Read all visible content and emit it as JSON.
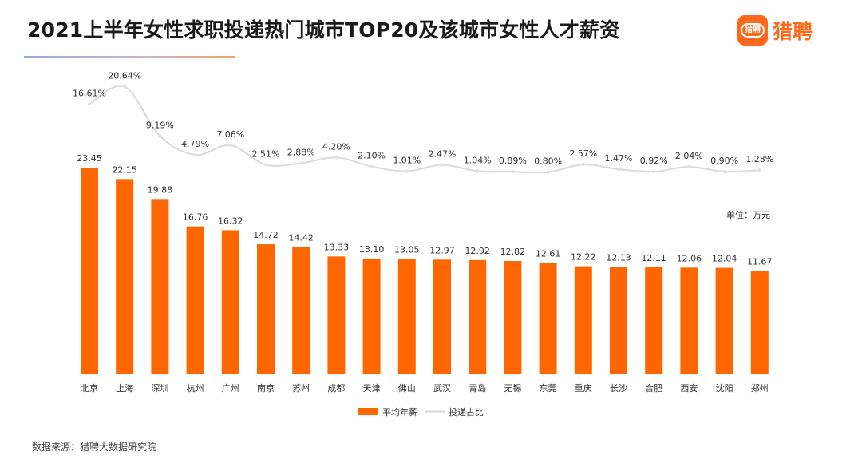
{
  "title": "2021上半年女性求职投递热门城市TOP20及该城市女性人才薪资",
  "logo": {
    "badge_text": "猎聘",
    "brand_name": "猎聘",
    "icon": "speech-bubble-icon",
    "color": "#ff6a1a"
  },
  "source": "数据来源：猎聘大数据研究院",
  "chart_data": {
    "type": "bar",
    "title": "2021上半年女性求职投递热门城市TOP20及该城市女性人才薪资",
    "categories": [
      "北京",
      "上海",
      "深圳",
      "杭州",
      "广州",
      "南京",
      "苏州",
      "成都",
      "天津",
      "佛山",
      "武汉",
      "青岛",
      "无锡",
      "东莞",
      "重庆",
      "长沙",
      "合肥",
      "西安",
      "沈阳",
      "郑州"
    ],
    "series": [
      {
        "name": "平均年薪",
        "type": "bar",
        "color": "#ff6600",
        "values": [
          23.45,
          22.15,
          19.88,
          16.76,
          16.32,
          14.72,
          14.42,
          13.33,
          13.1,
          13.05,
          12.97,
          12.92,
          12.82,
          12.61,
          12.22,
          12.13,
          12.11,
          12.06,
          12.04,
          11.67
        ],
        "labels": [
          "23.45",
          "22.15",
          "19.88",
          "16.76",
          "16.32",
          "14.72",
          "14.42",
          "13.33",
          "13.10",
          "13.05",
          "12.97",
          "12.92",
          "12.82",
          "12.61",
          "12.22",
          "12.13",
          "12.11",
          "12.06",
          "12.04",
          "11.67"
        ]
      },
      {
        "name": "投递占比",
        "type": "line",
        "color": "#dddddd",
        "values": [
          16.61,
          20.64,
          9.19,
          4.79,
          7.06,
          2.51,
          2.88,
          4.2,
          2.1,
          1.01,
          2.47,
          1.04,
          0.89,
          0.8,
          2.57,
          1.47,
          0.92,
          2.04,
          0.9,
          1.28
        ],
        "labels": [
          "16.61%",
          "20.64%",
          "9.19%",
          "4.79%",
          "7.06%",
          "2.51%",
          "2.88%",
          "4.20%",
          "2.10%",
          "1.01%",
          "2.47%",
          "1.04%",
          "0.89%",
          "0.80%",
          "2.57%",
          "1.47%",
          "0.92%",
          "2.04%",
          "0.90%",
          "1.28%"
        ]
      }
    ],
    "unit_label": "单位：万元",
    "legend_position": "bottom-center",
    "grid": false
  }
}
